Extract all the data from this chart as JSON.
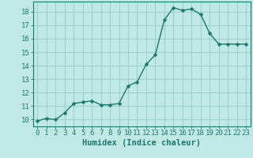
{
  "x": [
    0,
    1,
    2,
    3,
    4,
    5,
    6,
    7,
    8,
    9,
    10,
    11,
    12,
    13,
    14,
    15,
    16,
    17,
    18,
    19,
    20,
    21,
    22,
    23
  ],
  "y": [
    9.9,
    10.1,
    10.0,
    10.5,
    11.2,
    11.3,
    11.4,
    11.1,
    11.1,
    11.2,
    12.5,
    12.8,
    14.1,
    14.8,
    17.4,
    18.3,
    18.1,
    18.2,
    17.8,
    16.4,
    15.6,
    15.6,
    15.6,
    15.6
  ],
  "xlabel": "Humidex (Indice chaleur)",
  "xlim": [
    -0.5,
    23.5
  ],
  "ylim": [
    9.5,
    18.75
  ],
  "yticks": [
    10,
    11,
    12,
    13,
    14,
    15,
    16,
    17,
    18
  ],
  "xticks": [
    0,
    1,
    2,
    3,
    4,
    5,
    6,
    7,
    8,
    9,
    10,
    11,
    12,
    13,
    14,
    15,
    16,
    17,
    18,
    19,
    20,
    21,
    22,
    23
  ],
  "line_color": "#1a7a6e",
  "marker_color": "#1a7a6e",
  "bg_color": "#c0e8e4",
  "grid_color": "#a0d0cc",
  "axis_color": "#1a7a6e",
  "tick_label_color": "#1a7a6e",
  "xlabel_color": "#1a7a6e",
  "xlabel_fontsize": 7.5,
  "tick_fontsize": 6.5,
  "line_width": 1.0,
  "marker_size": 2.5
}
